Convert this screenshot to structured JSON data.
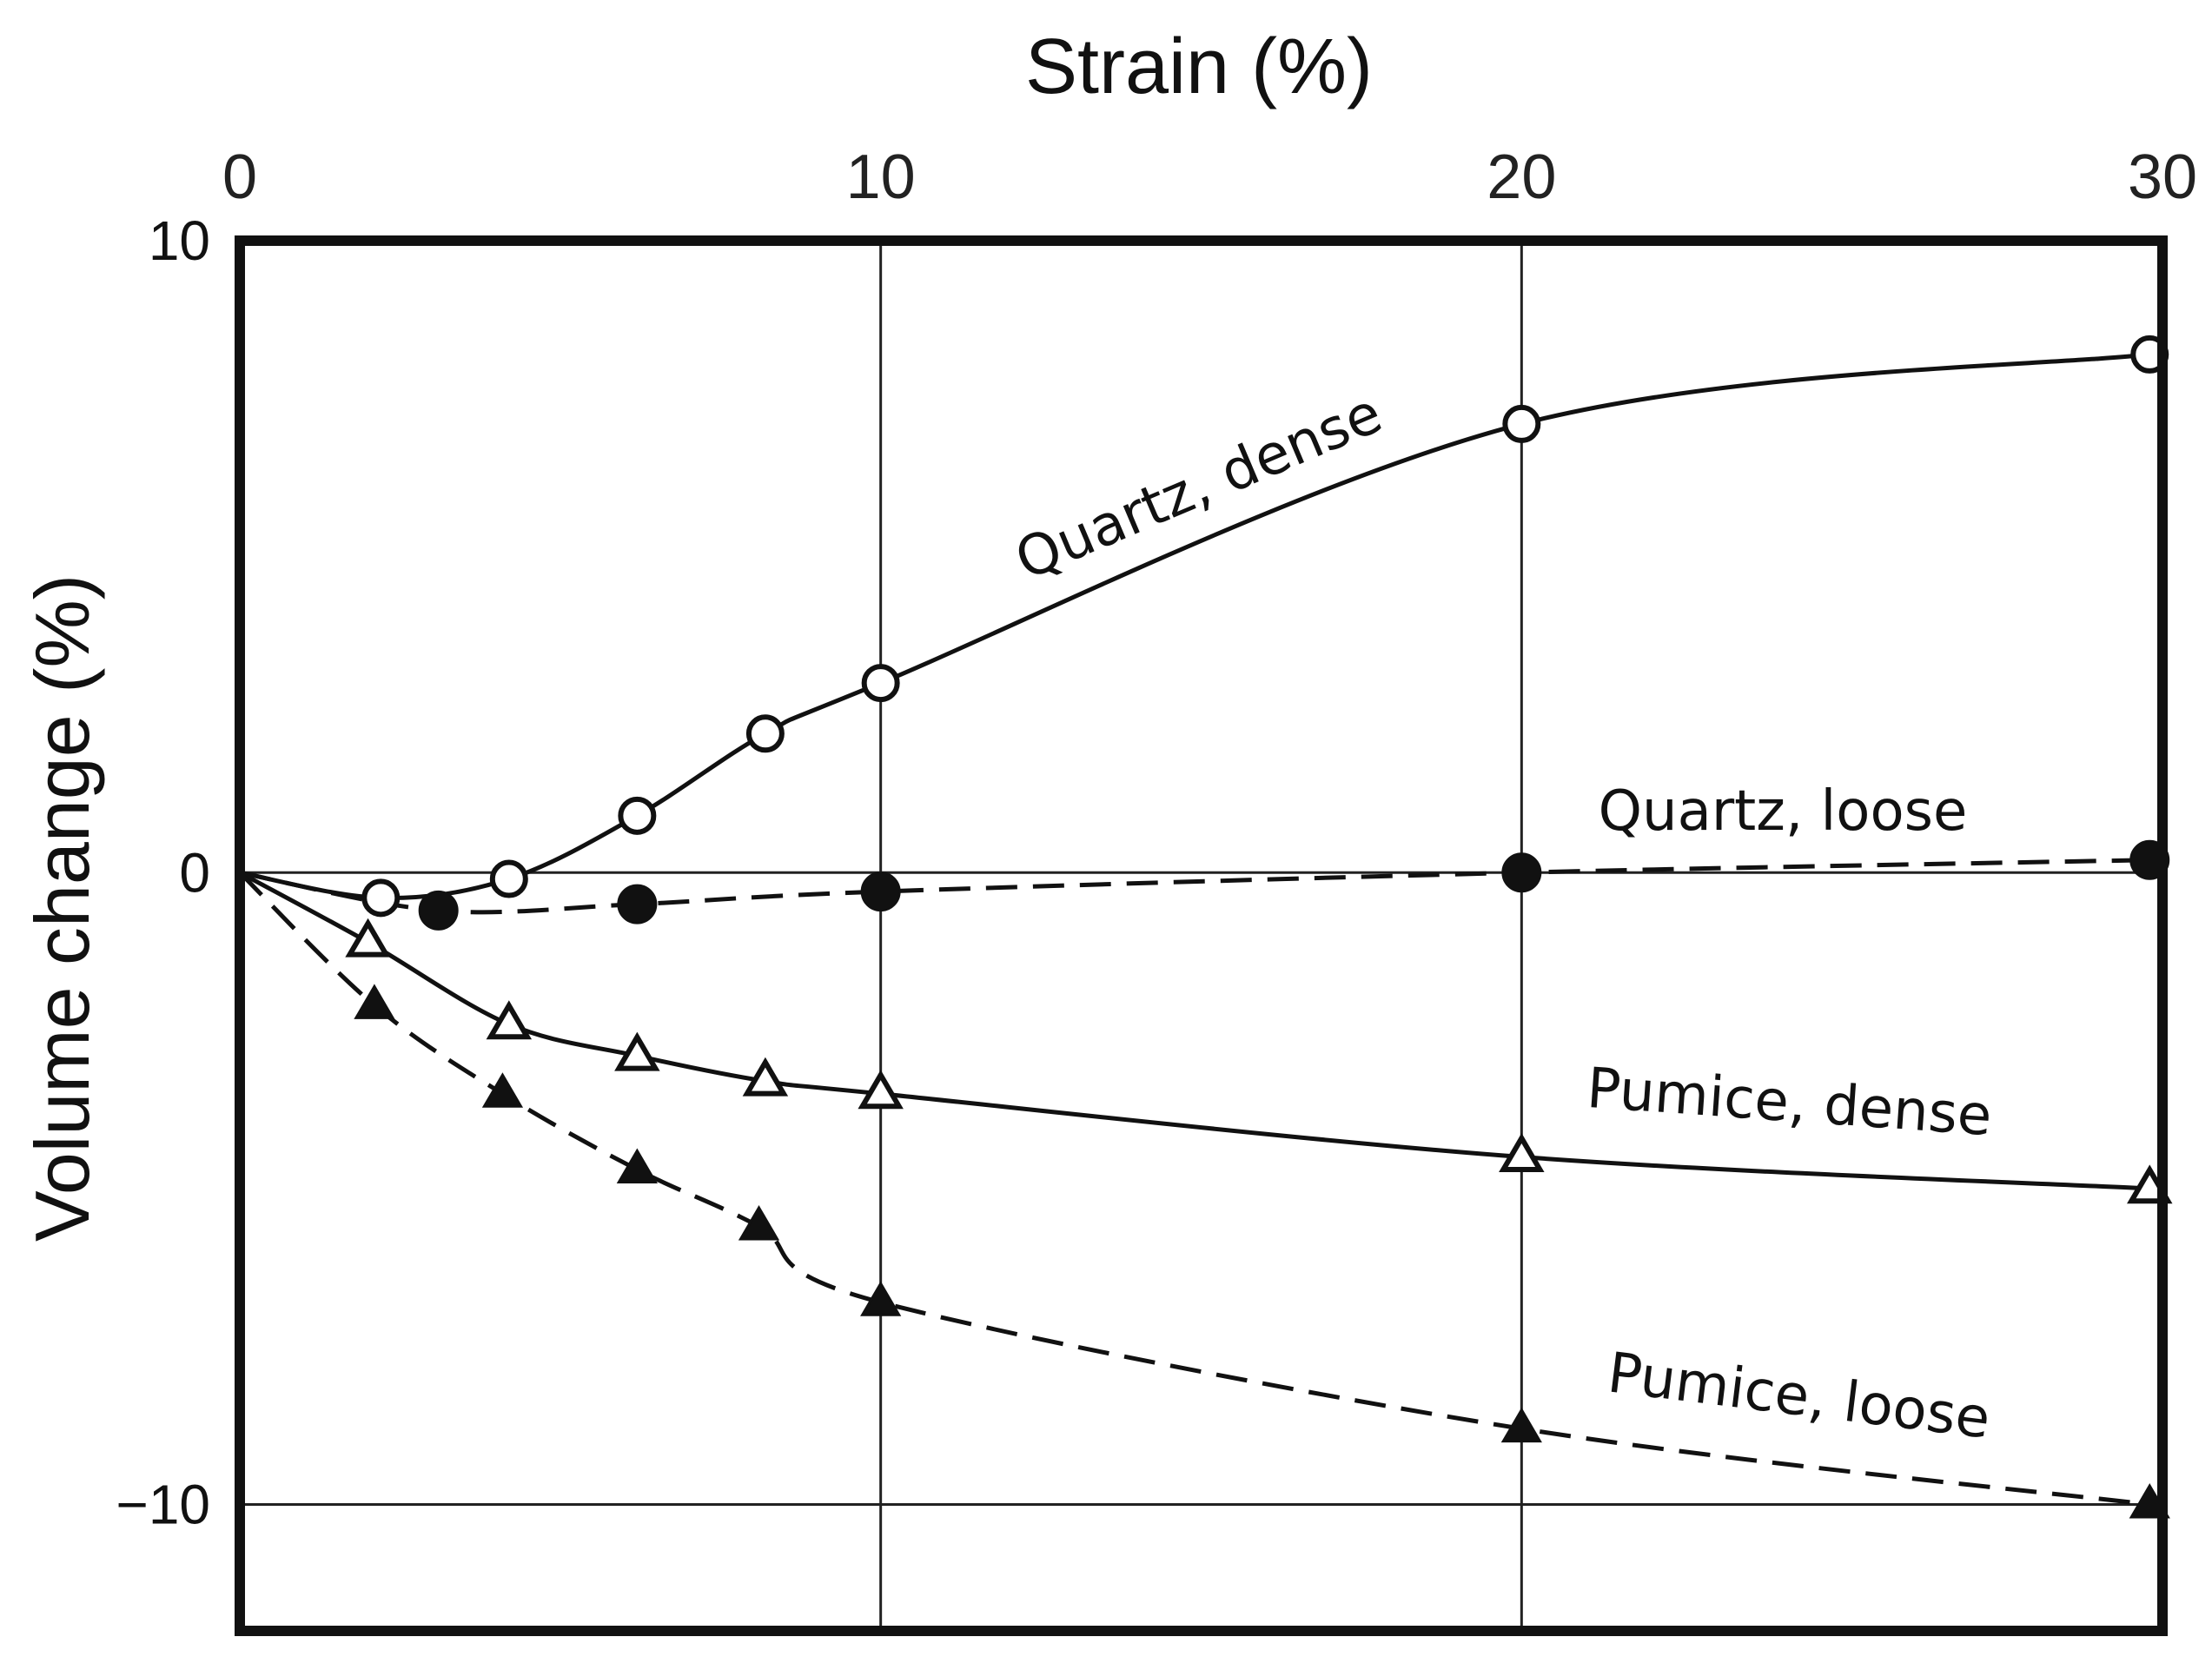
{
  "chart_data": {
    "type": "line",
    "title": "",
    "xlabel": "Strain (%)",
    "ylabel": "Volume change (%)",
    "xlim": [
      0,
      30
    ],
    "ylim": [
      -12,
      10
    ],
    "x_axis_position": "top",
    "x_ticks": [
      0,
      10,
      20,
      30
    ],
    "y_ticks": [
      10,
      0,
      -10
    ],
    "x_tick_labels": [
      "0",
      "10",
      "20",
      "30"
    ],
    "y_tick_labels": [
      "10",
      "0",
      "−10"
    ],
    "grid": "lines at x = 10, 20 and y = 0, -10",
    "legend": "none (labels placed next to curves)",
    "series": [
      {
        "name": "Quartz, dense",
        "marker": "open-circle",
        "line": "solid",
        "x": [
          2.2,
          4.2,
          6.2,
          8.2,
          10,
          20,
          29.8
        ],
        "y": [
          -0.4,
          -0.1,
          0.9,
          2.2,
          3.0,
          7.1,
          8.2
        ]
      },
      {
        "name": "Quartz, loose",
        "marker": "filled-circle",
        "line": "dashed",
        "x": [
          3.1,
          6.2,
          10,
          20,
          29.8
        ],
        "y": [
          -0.6,
          -0.5,
          -0.3,
          0.0,
          0.2
        ]
      },
      {
        "name": "Pumice, dense",
        "marker": "open-triangle",
        "line": "solid",
        "x": [
          2.0,
          4.2,
          6.2,
          8.2,
          10,
          20,
          29.8
        ],
        "y": [
          -1.1,
          -2.4,
          -2.9,
          -3.3,
          -3.5,
          -4.5,
          -5.0
        ]
      },
      {
        "name": "Pumice, loose",
        "marker": "filled-triangle",
        "line": "dashed",
        "x": [
          2.1,
          4.1,
          6.2,
          8.1,
          10,
          20,
          29.8
        ],
        "y": [
          -2.1,
          -3.5,
          -4.7,
          -5.6,
          -6.8,
          -8.8,
          -10.0
        ]
      }
    ]
  }
}
